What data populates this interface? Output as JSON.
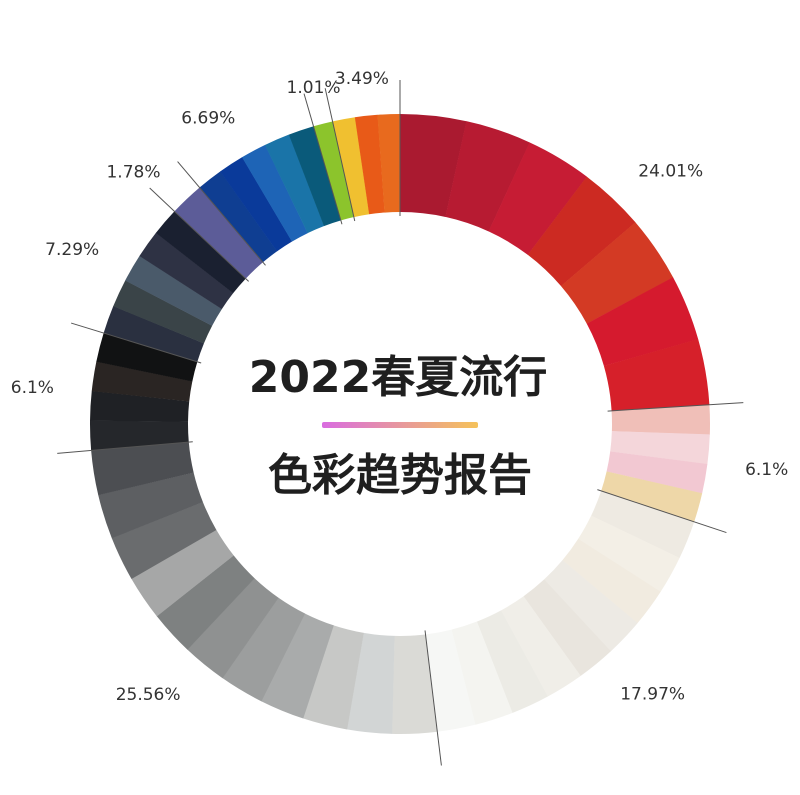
{
  "chart_data": {
    "type": "pie",
    "donut": true,
    "title_line1": "2022春夏流行",
    "title_line2": "色彩趋势报告",
    "divider_colors": [
      "#d96ce0",
      "#f5c25a"
    ],
    "slices": [
      {
        "label": "24.01%",
        "value": 24.01,
        "colors": [
          "#aa1a30",
          "#b71b32",
          "#c61c34",
          "#cc2a22",
          "#d33a24",
          "#d51a2e",
          "#d6202a"
        ]
      },
      {
        "label": "6.1%",
        "value": 6.1,
        "colors": [
          "#f0bfb8",
          "#f4d6da",
          "#f2c8d2",
          "#eed7a8"
        ]
      },
      {
        "label": "17.97%",
        "value": 17.97,
        "colors": [
          "#eeeae2",
          "#f3efe6",
          "#f1ebe0",
          "#edeae4",
          "#e9e5de",
          "#f0eee8",
          "#ecebe5",
          "#f4f4f0",
          "#f6f7f5"
        ]
      },
      {
        "label": "25.56%",
        "value": 25.56,
        "colors": [
          "#dadad6",
          "#d2d5d5",
          "#c7c8c6",
          "#a9abab",
          "#9c9e9e",
          "#8f9191",
          "#7e8181",
          "#a6a7a7",
          "#6a6c6e",
          "#5d5f62",
          "#4c4e52"
        ]
      },
      {
        "label": "6.1%",
        "value": 6.1,
        "colors": [
          "#25272b",
          "#1f2125",
          "#2a2523",
          "#111213"
        ]
      },
      {
        "label": "7.29%",
        "value": 7.29,
        "colors": [
          "#2a3040",
          "#3a4448",
          "#4a5a6a",
          "#2e3244",
          "#1a2030"
        ]
      },
      {
        "label": "1.78%",
        "value": 1.78,
        "colors": [
          "#5c5c98"
        ]
      },
      {
        "label": "6.69%",
        "value": 6.69,
        "colors": [
          "#0f3e92",
          "#0a3a9a",
          "#1e64b6",
          "#1a74a8",
          "#0a5a7a"
        ]
      },
      {
        "label": "1.01%",
        "value": 1.01,
        "colors": [
          "#8cc42c"
        ]
      },
      {
        "label": "3.49%",
        "value": 3.49,
        "colors": [
          "#f0c030",
          "#e85a18",
          "#e86a1e"
        ]
      }
    ]
  }
}
